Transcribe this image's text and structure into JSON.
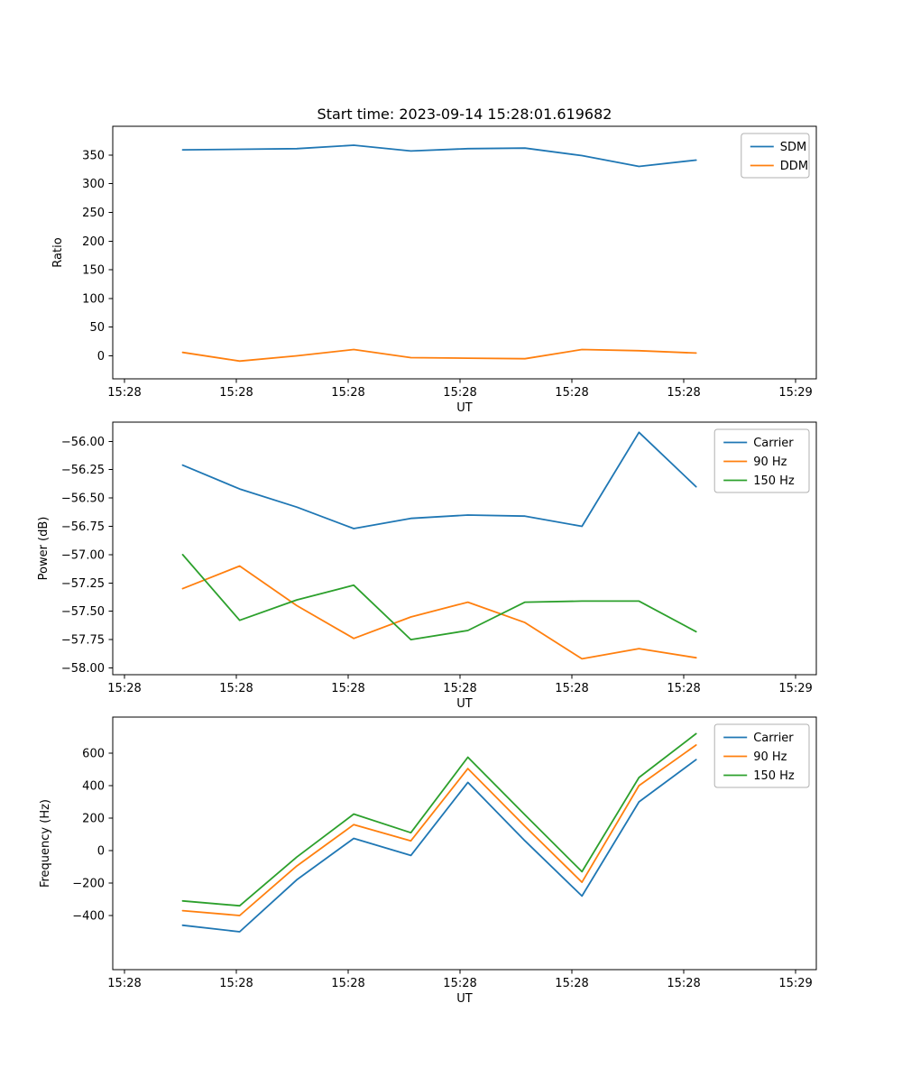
{
  "figure": {
    "title": "Start time: 2023-09-14 15:28:01.619682",
    "background": "#ffffff"
  },
  "colors": {
    "blue": "#1f77b4",
    "orange": "#ff7f0e",
    "green": "#2ca02c",
    "axes": "#000000",
    "legend_edge": "#b0b0b0"
  },
  "chart_data": [
    {
      "type": "line",
      "title": "Start time: 2023-09-14 15:28:01.619682",
      "xlabel": "UT",
      "ylabel": "Ratio",
      "grid": false,
      "legend_position": "upper right",
      "xlim": [
        -1.05,
        61.85
      ],
      "ylim": [
        -40,
        400
      ],
      "x_tick_values": [
        0,
        10,
        20,
        30,
        40,
        50,
        60
      ],
      "x_tick_labels": [
        "15:28",
        "15:28",
        "15:28",
        "15:28",
        "15:28",
        "15:28",
        "15:29"
      ],
      "y_tick_values": [
        0,
        50,
        100,
        150,
        200,
        250,
        300,
        350
      ],
      "y_tick_labels": [
        "0",
        "50",
        "100",
        "150",
        "200",
        "250",
        "300",
        "350"
      ],
      "x": [
        5.2,
        10.3,
        15.4,
        20.5,
        25.6,
        30.7,
        35.8,
        40.9,
        46.0,
        51.1
      ],
      "series": [
        {
          "name": "SDM",
          "color": "#1f77b4",
          "values": [
            359,
            360,
            361,
            367,
            357,
            361,
            362,
            349,
            330,
            341
          ]
        },
        {
          "name": "DDM",
          "color": "#ff7f0e",
          "values": [
            6,
            -9,
            0,
            11,
            -3,
            -4,
            -5,
            11,
            9,
            5
          ]
        }
      ]
    },
    {
      "type": "line",
      "title": "",
      "xlabel": "UT",
      "ylabel": "Power (dB)",
      "grid": false,
      "legend_position": "upper right",
      "xlim": [
        -1.05,
        61.85
      ],
      "ylim": [
        -58.06,
        -55.83
      ],
      "x_tick_values": [
        0,
        10,
        20,
        30,
        40,
        50,
        60
      ],
      "x_tick_labels": [
        "15:28",
        "15:28",
        "15:28",
        "15:28",
        "15:28",
        "15:28",
        "15:29"
      ],
      "y_tick_values": [
        -58.0,
        -57.75,
        -57.5,
        -57.25,
        -57.0,
        -56.75,
        -56.5,
        -56.25,
        -56.0
      ],
      "y_tick_labels": [
        "−58.00",
        "−57.75",
        "−57.50",
        "−57.25",
        "−57.00",
        "−56.75",
        "−56.50",
        "−56.25",
        "−56.00"
      ],
      "x": [
        5.2,
        10.3,
        15.4,
        20.5,
        25.6,
        30.7,
        35.8,
        40.9,
        46.0,
        51.1
      ],
      "series": [
        {
          "name": "Carrier",
          "color": "#1f77b4",
          "values": [
            -56.21,
            -56.42,
            -56.58,
            -56.77,
            -56.68,
            -56.65,
            -56.66,
            -56.75,
            -55.92,
            -56.4
          ]
        },
        {
          "name": "90 Hz",
          "color": "#ff7f0e",
          "values": [
            -57.3,
            -57.1,
            -57.45,
            -57.74,
            -57.55,
            -57.42,
            -57.6,
            -57.92,
            -57.83,
            -57.91
          ]
        },
        {
          "name": "150 Hz",
          "color": "#2ca02c",
          "values": [
            -57.0,
            -57.58,
            -57.4,
            -57.27,
            -57.75,
            -57.67,
            -57.42,
            -57.41,
            -57.41,
            -57.68
          ]
        }
      ]
    },
    {
      "type": "line",
      "title": "",
      "xlabel": "UT",
      "ylabel": "Frequency (Hz)",
      "grid": false,
      "legend_position": "upper right",
      "xlim": [
        -1.05,
        61.85
      ],
      "ylim": [
        -733,
        822
      ],
      "x_tick_values": [
        0,
        10,
        20,
        30,
        40,
        50,
        60
      ],
      "x_tick_labels": [
        "15:28",
        "15:28",
        "15:28",
        "15:28",
        "15:28",
        "15:28",
        "15:29"
      ],
      "y_tick_values": [
        -400,
        -200,
        0,
        200,
        400,
        600
      ],
      "y_tick_labels": [
        "−400",
        "−200",
        "0",
        "200",
        "400",
        "600"
      ],
      "x": [
        5.2,
        10.3,
        15.4,
        20.5,
        25.6,
        30.7,
        35.8,
        40.9,
        46.0,
        51.1
      ],
      "series": [
        {
          "name": "Carrier",
          "color": "#1f77b4",
          "values": [
            -460,
            -500,
            -180,
            75,
            -30,
            420,
            60,
            -280,
            300,
            560
          ]
        },
        {
          "name": "90 Hz",
          "color": "#ff7f0e",
          "values": [
            -370,
            -400,
            -95,
            160,
            60,
            505,
            150,
            -195,
            400,
            650
          ]
        },
        {
          "name": "150 Hz",
          "color": "#2ca02c",
          "values": [
            -310,
            -340,
            -40,
            225,
            110,
            575,
            220,
            -130,
            450,
            720
          ]
        }
      ]
    }
  ]
}
